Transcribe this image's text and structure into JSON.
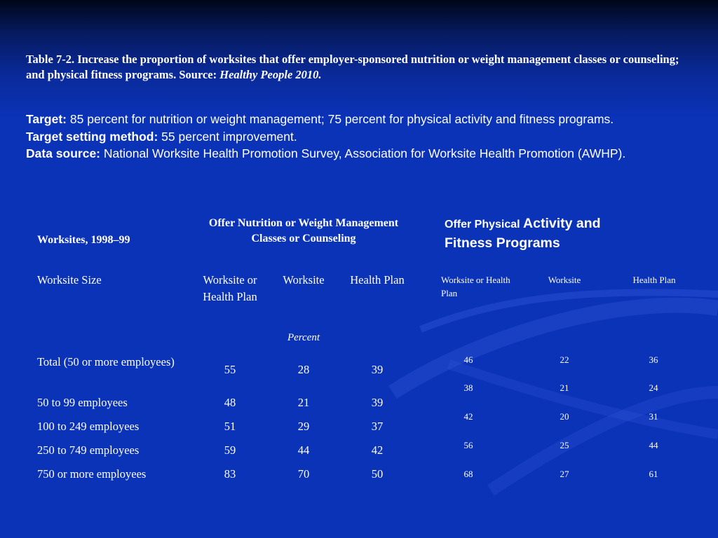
{
  "caption": {
    "text": "Table 7-2. Increase the proportion of worksites that offer employer-sponsored nutrition or weight management classes or counseling; and physical fitness programs. Source: ",
    "source_italic": "Healthy People 2010."
  },
  "info": {
    "target_label": "Target:",
    "target_text": " 85 percent for nutrition or weight management; 75 percent for physical activity and fitness programs.",
    "method_label": "Target setting method:",
    "method_text": " 55 percent improvement.",
    "source_label": "Data source:",
    "source_text": " National Worksite Health Promotion Survey, Association for Worksite Health Promotion (AWHP)."
  },
  "table_left": {
    "corner_header": "Worksites, 1998–99",
    "group_header_line1": "Offer Nutrition or Weight Management",
    "group_header_line2": "Classes or Counseling",
    "size_label": "Worksite Size",
    "col_headers": [
      "Worksite or Health Plan",
      "Worksite",
      "Health Plan"
    ],
    "unit_label": "Percent",
    "rows": [
      {
        "label": "Total (50 or more employees)",
        "values": [
          "55",
          "28",
          "39"
        ]
      },
      {
        "label": "50 to 99 employees",
        "values": [
          "48",
          "21",
          "39"
        ]
      },
      {
        "label": "100 to 249 employees",
        "values": [
          "51",
          "29",
          "37"
        ]
      },
      {
        "label": "250 to 749 employees",
        "values": [
          "59",
          "44",
          "42"
        ]
      },
      {
        "label": "750 or more employees",
        "values": [
          "83",
          "70",
          "50"
        ]
      }
    ]
  },
  "table_right": {
    "header_small": "Offer Physical ",
    "header_large_1": "Activity and",
    "header_line2": "Fitness Programs",
    "col_headers": [
      "Worksite or Health Plan",
      "Worksite",
      "Health Plan"
    ],
    "rows": [
      [
        "46",
        "22",
        "36"
      ],
      [
        "38",
        "21",
        "24"
      ],
      [
        "42",
        "20",
        "31"
      ],
      [
        "56",
        "25",
        "44"
      ],
      [
        "68",
        "27",
        "61"
      ]
    ]
  }
}
